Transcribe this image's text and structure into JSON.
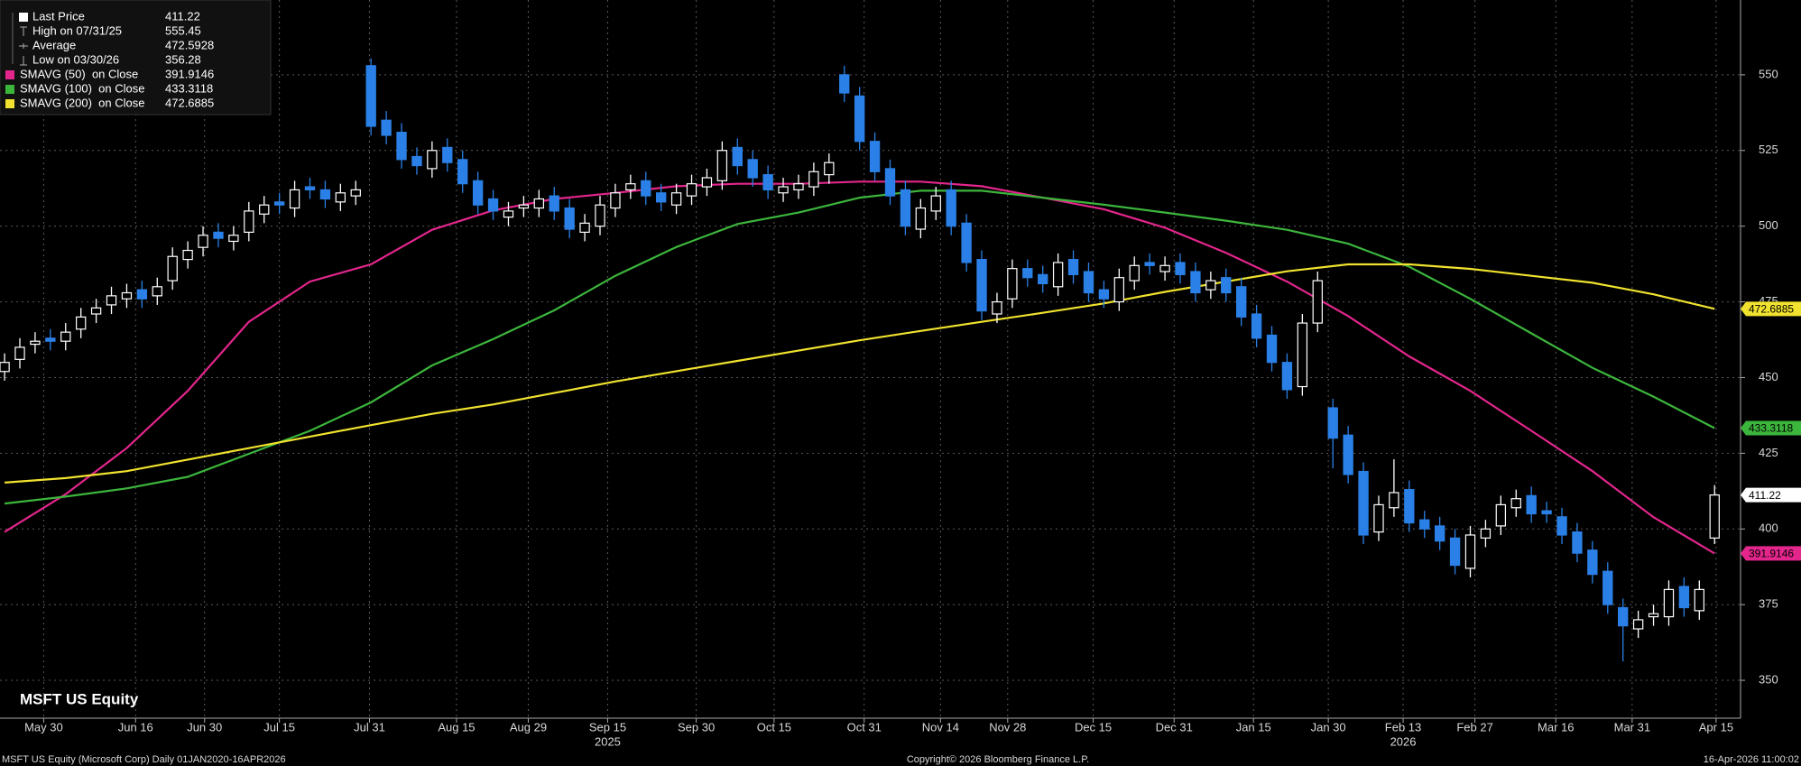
{
  "chart_data": {
    "type": "candlestick",
    "title": "MSFT US Equity",
    "footer": {
      "left": "MSFT US Equity (Microsoft Corp) Daily 01JAN2020-16APR2026",
      "center": "Copyright© 2026 Bloomberg Finance L.P.",
      "right": "16-Apr-2026 11:00:02"
    },
    "up_color": "#ffffff",
    "down_color": "#2a80e6",
    "grid": true,
    "ylim": [
      337.5,
      574.7
    ],
    "yticks": [
      350,
      375,
      400,
      425,
      450,
      475,
      500,
      525,
      550
    ],
    "xlim": [
      -0.3,
      113.7
    ],
    "xticks": [
      {
        "value": 2.56,
        "label": "May 30"
      },
      {
        "value": 8.58,
        "label": "Jun 16"
      },
      {
        "value": 13.1,
        "label": "Jun 30"
      },
      {
        "value": 18,
        "label": "Jul 15"
      },
      {
        "value": 23.9,
        "label": "Jul 31"
      },
      {
        "value": 29.6,
        "label": "Aug 15"
      },
      {
        "value": 34.3,
        "label": "Aug 29"
      },
      {
        "value": 39.5,
        "label": "Sep 15"
      },
      {
        "value": 45.3,
        "label": "Sep 30"
      },
      {
        "value": 50.4,
        "label": "Oct 15"
      },
      {
        "value": 56.3,
        "label": "Oct 31"
      },
      {
        "value": 61.3,
        "label": "Nov 14"
      },
      {
        "value": 65.7,
        "label": "Nov 28"
      },
      {
        "value": 71.3,
        "label": "Dec 15"
      },
      {
        "value": 76.6,
        "label": "Dec 31"
      },
      {
        "value": 81.8,
        "label": "Jan 15"
      },
      {
        "value": 86.7,
        "label": "Jan 30"
      },
      {
        "value": 91.6,
        "label": "Feb 13"
      },
      {
        "value": 96.3,
        "label": "Feb 27"
      },
      {
        "value": 101.6,
        "label": "Mar 16"
      },
      {
        "value": 106.6,
        "label": "Mar 31"
      },
      {
        "value": 112.1,
        "label": "Apr 15"
      }
    ],
    "year_labels": [
      {
        "value": 39.5,
        "label": "2025"
      },
      {
        "value": 91.6,
        "label": "2026"
      }
    ],
    "stats": [
      {
        "label": "Last Price",
        "value": 411.22
      },
      {
        "label": "High on 07/31/25",
        "value": 555.45
      },
      {
        "label": "Average",
        "value": 472.5928
      },
      {
        "label": "Low on 03/30/26",
        "value": 356.28
      }
    ],
    "open": [
      452,
      456,
      461,
      463,
      462,
      466,
      471,
      474,
      476,
      479,
      477,
      482,
      489,
      493,
      498,
      495,
      498,
      504,
      508,
      506,
      513,
      512,
      508,
      510,
      553,
      535,
      531,
      523,
      519,
      526,
      522,
      515,
      509,
      503,
      506,
      506,
      510,
      506,
      498,
      500,
      506,
      512,
      515,
      511,
      507,
      510,
      513,
      515,
      526,
      522,
      517,
      511,
      512,
      513,
      517,
      550,
      543,
      528,
      519,
      512,
      499,
      505,
      512,
      501,
      489,
      471,
      476,
      486,
      484,
      480,
      489,
      485,
      479,
      475,
      482,
      488,
      485,
      488,
      485,
      479,
      483,
      480,
      471,
      464,
      455,
      447,
      468,
      440,
      431,
      419,
      399,
      407,
      413,
      403,
      401,
      397,
      387,
      397,
      401,
      407,
      411,
      406,
      404,
      399,
      393,
      386,
      374,
      367,
      371,
      371,
      381,
      373,
      397
    ],
    "high": [
      458,
      463,
      465,
      466,
      468,
      473,
      476,
      480,
      481,
      482,
      483,
      493,
      495,
      500,
      501,
      500,
      508,
      510,
      511,
      515,
      516,
      515,
      514,
      515,
      555.45,
      538,
      534,
      526,
      528,
      529,
      525,
      518,
      512,
      508,
      510,
      512,
      513,
      509,
      504,
      510,
      514,
      517,
      518,
      514,
      514,
      517,
      519,
      528,
      529,
      525,
      520,
      516,
      517,
      521,
      524,
      553,
      546,
      531,
      522,
      515,
      509,
      513,
      515,
      504,
      492,
      478,
      489,
      489,
      487,
      491,
      492,
      488,
      482,
      486,
      490,
      491,
      490,
      491,
      488,
      485,
      486,
      483,
      474,
      467,
      458,
      471,
      485,
      443,
      434,
      422,
      411,
      423,
      416,
      406,
      404,
      400,
      401,
      403,
      411,
      413,
      414,
      409,
      407,
      402,
      396,
      389,
      377,
      373,
      375,
      383,
      384,
      383,
      414.5
    ],
    "low": [
      449,
      453,
      458,
      459,
      459,
      463,
      468,
      471,
      473,
      473,
      474,
      479,
      486,
      490,
      493,
      492,
      495,
      501,
      504,
      503,
      509,
      506,
      505,
      507,
      530,
      527,
      519,
      517,
      516,
      518,
      511,
      504,
      502,
      500,
      503,
      503,
      502,
      496,
      495,
      497,
      503,
      509,
      507,
      505,
      504,
      507,
      510,
      512,
      517,
      513,
      509,
      508,
      509,
      510,
      514,
      541,
      525,
      515,
      507,
      497,
      496,
      502,
      497,
      485,
      469,
      468,
      473,
      480,
      478,
      477,
      481,
      475,
      473,
      472,
      479,
      484,
      482,
      481,
      475,
      476,
      475,
      467,
      460,
      452,
      443,
      444,
      465,
      420,
      415,
      395,
      396,
      404,
      399,
      397,
      393,
      385,
      384,
      394,
      398,
      404,
      402,
      402,
      395,
      389,
      382,
      372,
      356.28,
      364,
      368,
      368,
      371,
      370,
      395
    ],
    "close": [
      455,
      460,
      462,
      462,
      465,
      470,
      473,
      477,
      478,
      476,
      480,
      490,
      492,
      497,
      496,
      497,
      505,
      507,
      507,
      512,
      512,
      509,
      511,
      512,
      533,
      530,
      522,
      520,
      525,
      521,
      514,
      507,
      505,
      505,
      507,
      509,
      505,
      499,
      501,
      507,
      511,
      514,
      510,
      508,
      511,
      514,
      516,
      525,
      520,
      516,
      512,
      513,
      514,
      518,
      521,
      544,
      528,
      518,
      510,
      500,
      506,
      510,
      500,
      488,
      472,
      475,
      486,
      483,
      481,
      488,
      484,
      478,
      476,
      483,
      487,
      487,
      487,
      484,
      478,
      482,
      478,
      470,
      463,
      455,
      446,
      468,
      482,
      430,
      418,
      398,
      408,
      412,
      402,
      400,
      396,
      388,
      398,
      400,
      408,
      410,
      405,
      405,
      398,
      392,
      385,
      375,
      368,
      370,
      372,
      380,
      374,
      380,
      411.22
    ],
    "series": [
      {
        "name": "SMAVG (50)  on Close",
        "color": "#e3268c",
        "x": [
          0,
          4,
          8,
          12,
          16,
          20,
          24,
          28,
          32,
          36,
          40,
          44,
          48,
          52,
          56,
          60,
          64,
          68,
          72,
          76,
          80,
          84,
          88,
          92,
          96,
          100,
          104,
          108,
          112
        ],
        "values": [
          399,
          411.5,
          426.7,
          445.6,
          468.4,
          481.7,
          487.4,
          498.8,
          505.2,
          509,
          511,
          513.2,
          514,
          514,
          514.7,
          514.7,
          513.2,
          509.4,
          505.6,
          499.5,
          491.2,
          481.7,
          470.3,
          457,
          445.6,
          432.4,
          419.1,
          403.9,
          391.9146
        ]
      },
      {
        "name": "SMAVG (100)  on Close",
        "color": "#3cb53c",
        "x": [
          0,
          4,
          8,
          12,
          16,
          20,
          24,
          28,
          32,
          36,
          40,
          44,
          48,
          52,
          56,
          60,
          64,
          68,
          72,
          76,
          80,
          84,
          88,
          92,
          96,
          100,
          104,
          108,
          112
        ],
        "values": [
          408.4,
          410.7,
          413.4,
          417.2,
          424.8,
          432.4,
          441.8,
          454,
          462.7,
          472.2,
          483.6,
          493.1,
          500.7,
          504.5,
          509.4,
          511.7,
          511.7,
          509.4,
          507.1,
          504.5,
          501.8,
          498.8,
          494.2,
          486.6,
          476,
          464.6,
          453.2,
          443.7,
          433.3118
        ]
      },
      {
        "name": "SMAVG (200)  on Close",
        "color": "#f0e22e",
        "x": [
          0,
          4,
          8,
          12,
          16,
          20,
          24,
          28,
          32,
          36,
          40,
          44,
          48,
          52,
          56,
          60,
          64,
          68,
          72,
          76,
          80,
          84,
          88,
          92,
          96,
          100,
          104,
          108,
          112
        ],
        "values": [
          415.3,
          416.8,
          419.1,
          422.9,
          426.7,
          430.5,
          434.3,
          438,
          441.1,
          444.9,
          448.7,
          452.1,
          455.5,
          458.9,
          462.3,
          465.4,
          468.4,
          471.4,
          474.5,
          478.3,
          481.7,
          485.1,
          487.4,
          487.4,
          485.9,
          483.6,
          481.3,
          477.5,
          472.6885
        ]
      }
    ]
  }
}
